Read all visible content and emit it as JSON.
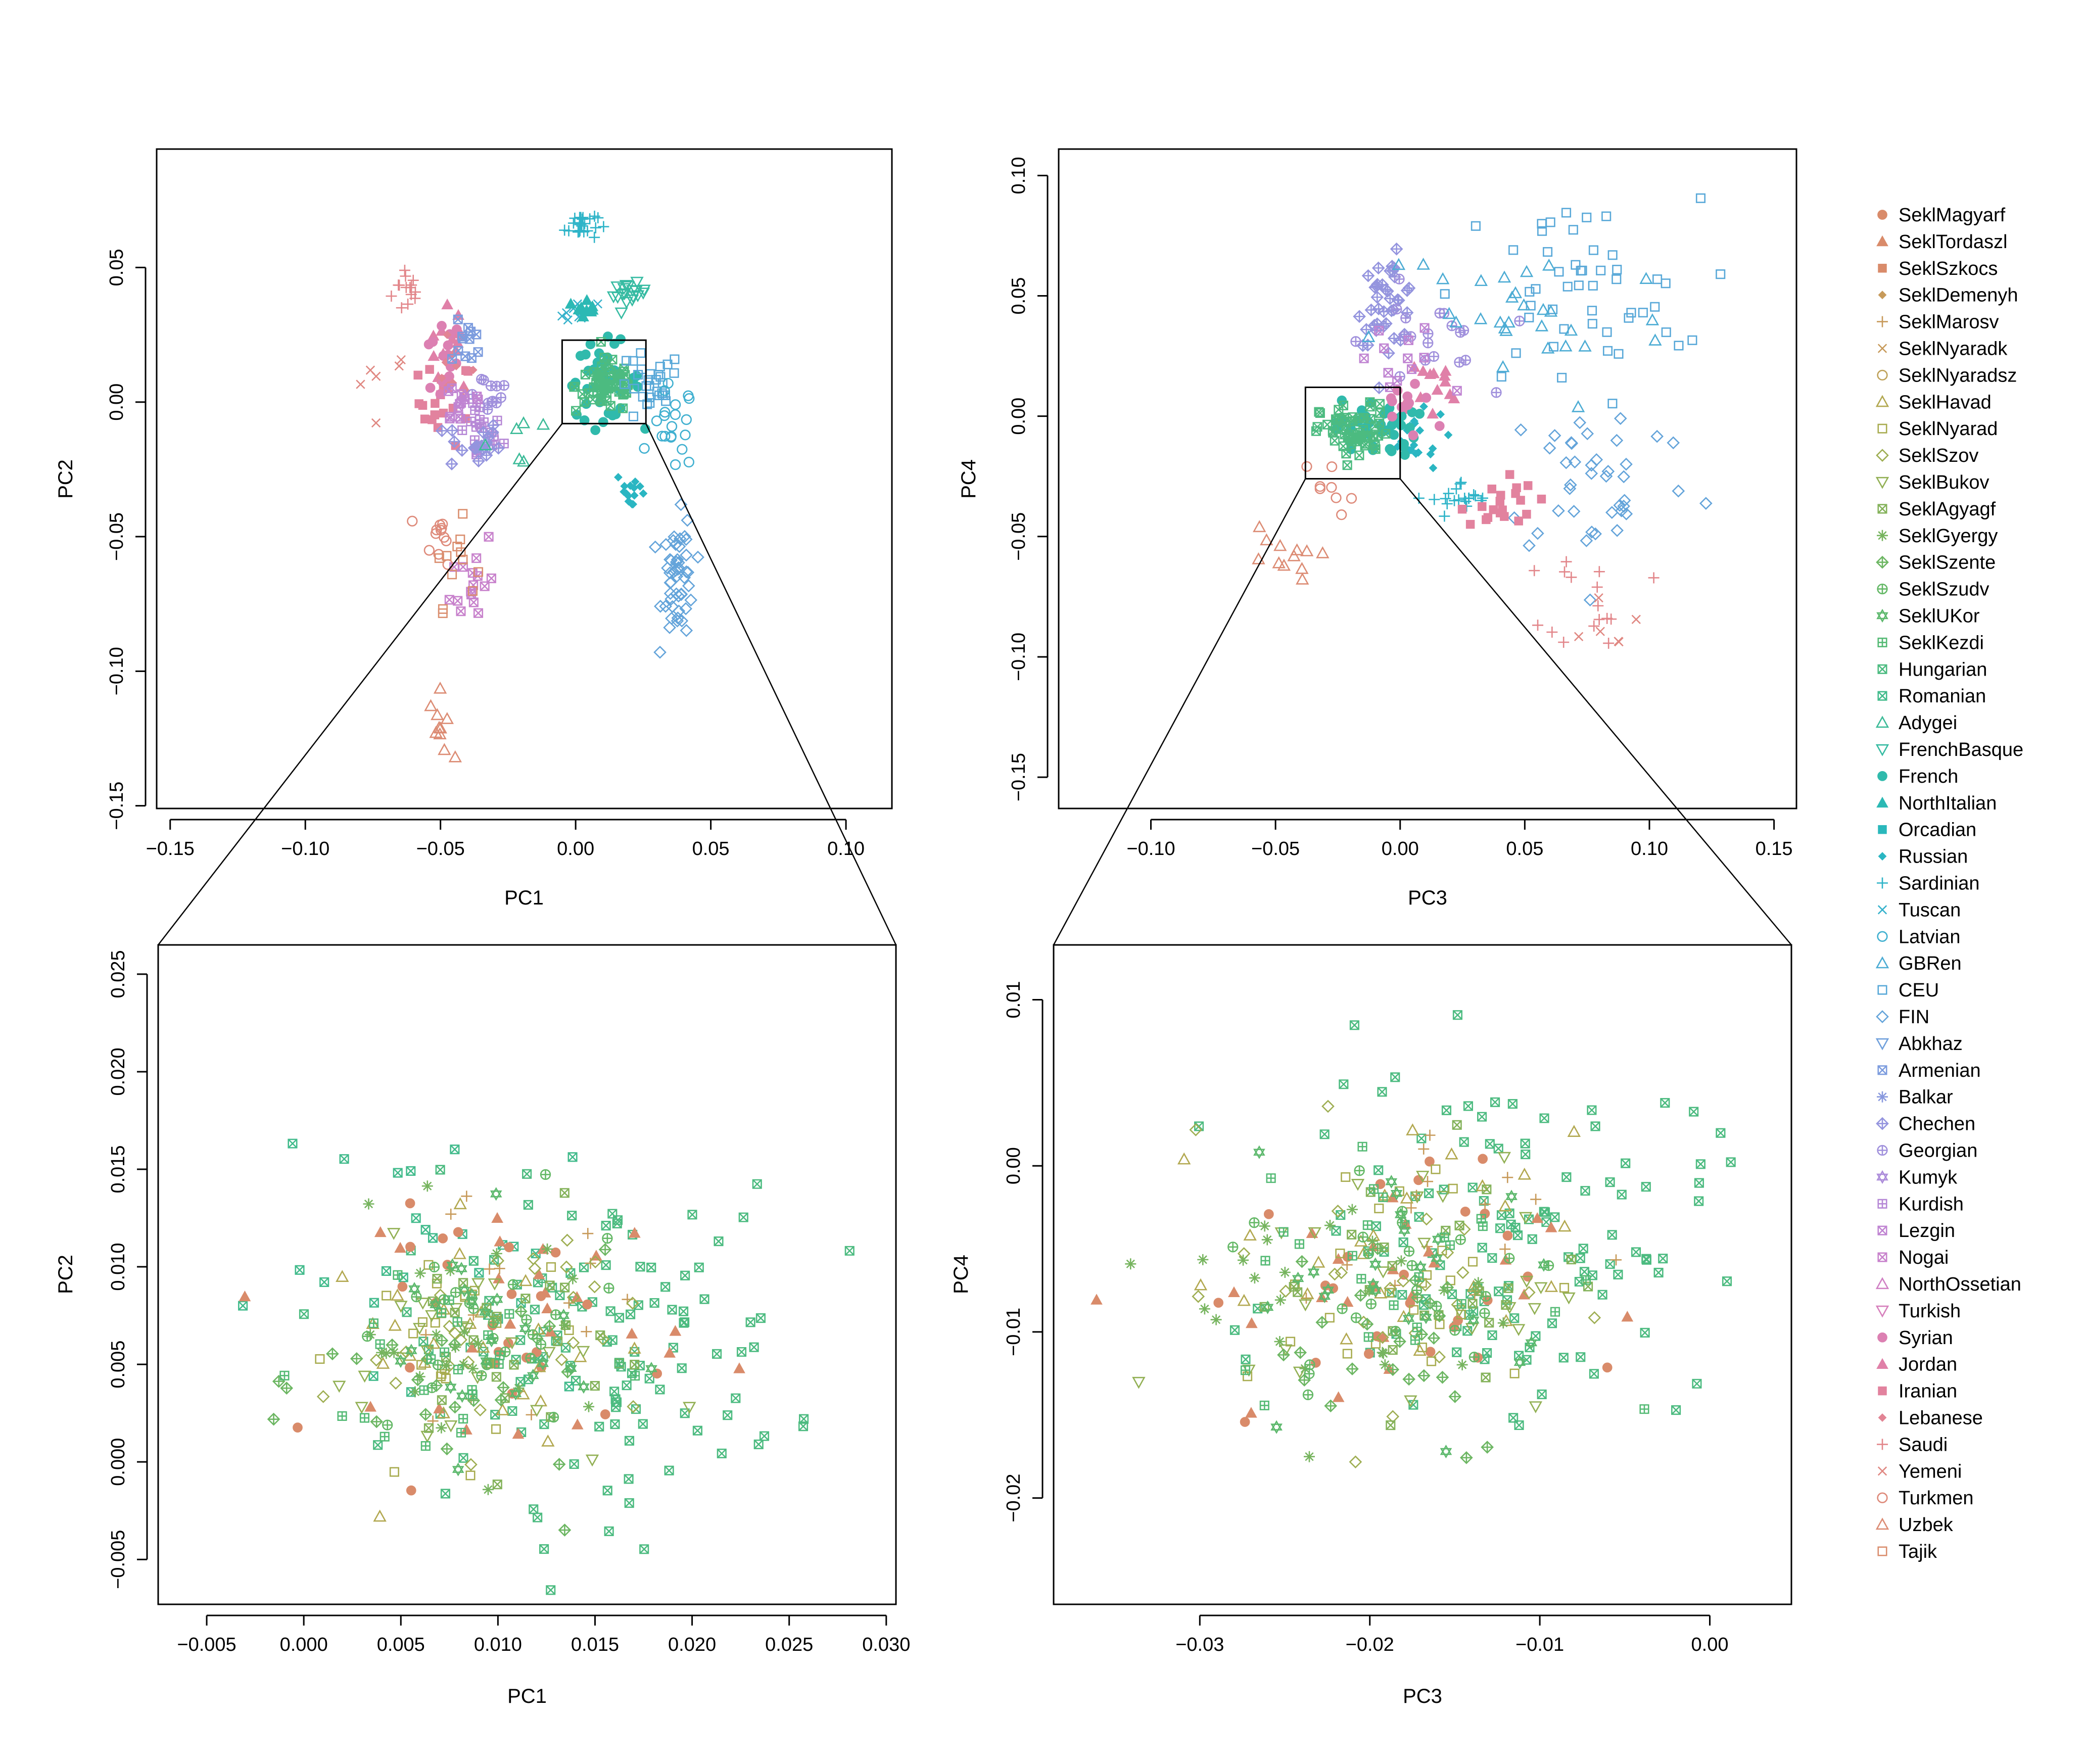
{
  "chart_data": [
    {
      "type": "scatter",
      "title": "",
      "xlabel": "PC1",
      "ylabel": "PC2",
      "xlim": [
        -0.155,
        0.117
      ],
      "ylim": [
        -0.151,
        0.094
      ],
      "xticks": [
        -0.15,
        -0.1,
        -0.05,
        0.0,
        0.05,
        0.1
      ],
      "xtick_labels": [
        "−0.15",
        "−0.10",
        "−0.05",
        "0.00",
        "0.05",
        "0.10"
      ],
      "yticks": [
        -0.15,
        -0.1,
        -0.05,
        0.0,
        0.05
      ],
      "ytick_labels": [
        "−0.15",
        "−0.10",
        "−0.05",
        "0.00",
        "0.05"
      ],
      "zoom_box": [
        -0.005,
        0.026,
        -0.008,
        0.023
      ],
      "clusters": [
        {
          "name": "Saudi",
          "cx": -0.062,
          "cy": 0.042,
          "sx": 0.003,
          "sy": 0.005,
          "n": 14
        },
        {
          "name": "Yemeni",
          "cx": -0.072,
          "cy": 0.008,
          "sx": 0.006,
          "sy": 0.006,
          "n": 6
        },
        {
          "name": "Jordan",
          "cx": -0.046,
          "cy": 0.02,
          "sx": 0.004,
          "sy": 0.008,
          "n": 14
        },
        {
          "name": "Iranian",
          "cx": -0.048,
          "cy": 0.0,
          "sx": 0.005,
          "sy": 0.008,
          "n": 20
        },
        {
          "name": "Syrian",
          "cx": -0.05,
          "cy": 0.015,
          "sx": 0.004,
          "sy": 0.008,
          "n": 14
        },
        {
          "name": "Lebanese",
          "cx": -0.045,
          "cy": 0.01,
          "sx": 0.004,
          "sy": 0.006,
          "n": 10
        },
        {
          "name": "Kurdish",
          "cx": -0.035,
          "cy": -0.012,
          "sx": 0.004,
          "sy": 0.006,
          "n": 20
        },
        {
          "name": "Armenian",
          "cx": -0.04,
          "cy": 0.022,
          "sx": 0.003,
          "sy": 0.004,
          "n": 12
        },
        {
          "name": "Chechen",
          "cx": -0.038,
          "cy": -0.016,
          "sx": 0.005,
          "sy": 0.005,
          "n": 20
        },
        {
          "name": "Georgian",
          "cx": -0.033,
          "cy": 0.004,
          "sx": 0.005,
          "sy": 0.004,
          "n": 12
        },
        {
          "name": "Lezgin",
          "cx": -0.042,
          "cy": 0.0,
          "sx": 0.005,
          "sy": 0.005,
          "n": 14
        },
        {
          "name": "Nogai",
          "cx": -0.038,
          "cy": -0.065,
          "sx": 0.004,
          "sy": 0.01,
          "n": 16
        },
        {
          "name": "Turkmen",
          "cx": -0.05,
          "cy": -0.05,
          "sx": 0.003,
          "sy": 0.005,
          "n": 12
        },
        {
          "name": "Tajik",
          "cx": -0.045,
          "cy": -0.06,
          "sx": 0.004,
          "sy": 0.008,
          "n": 12
        },
        {
          "name": "Uzbek",
          "cx": -0.05,
          "cy": -0.12,
          "sx": 0.002,
          "sy": 0.006,
          "n": 10
        },
        {
          "name": "Sardinian",
          "cx": 0.002,
          "cy": 0.066,
          "sx": 0.003,
          "sy": 0.003,
          "n": 25
        },
        {
          "name": "Tuscan",
          "cx": 0.0,
          "cy": 0.033,
          "sx": 0.004,
          "sy": 0.002,
          "n": 8
        },
        {
          "name": "NorthItalian",
          "cx": 0.004,
          "cy": 0.036,
          "sx": 0.002,
          "sy": 0.002,
          "n": 10
        },
        {
          "name": "FrenchBasque",
          "cx": 0.02,
          "cy": 0.04,
          "sx": 0.003,
          "sy": 0.002,
          "n": 18
        },
        {
          "name": "Russian",
          "cx": 0.021,
          "cy": -0.033,
          "sx": 0.003,
          "sy": 0.004,
          "n": 14
        },
        {
          "name": "French",
          "cx": 0.01,
          "cy": 0.008,
          "sx": 0.007,
          "sy": 0.007,
          "n": 40
        },
        {
          "name": "Hungarian",
          "cx": 0.012,
          "cy": 0.006,
          "sx": 0.006,
          "sy": 0.005,
          "n": 60
        },
        {
          "name": "CEU",
          "cx": 0.027,
          "cy": 0.005,
          "sx": 0.006,
          "sy": 0.007,
          "n": 30
        },
        {
          "name": "Latvian",
          "cx": 0.036,
          "cy": -0.01,
          "sx": 0.004,
          "sy": 0.008,
          "n": 20
        },
        {
          "name": "FIN",
          "cx": 0.038,
          "cy": -0.065,
          "sx": 0.003,
          "sy": 0.011,
          "n": 50
        },
        {
          "name": "Adygei",
          "cx": -0.02,
          "cy": -0.015,
          "sx": 0.006,
          "sy": 0.005,
          "n": 6
        }
      ]
    },
    {
      "type": "scatter",
      "title": "",
      "xlabel": "PC3",
      "ylabel": "PC4",
      "xlim": [
        -0.137,
        0.159
      ],
      "ylim": [
        -0.163,
        0.111
      ],
      "xticks": [
        -0.1,
        -0.05,
        0.0,
        0.05,
        0.1,
        0.15
      ],
      "xtick_labels": [
        "−0.10",
        "−0.05",
        "0.00",
        "0.05",
        "0.10",
        "0.15"
      ],
      "yticks": [
        -0.15,
        -0.1,
        -0.05,
        0.0,
        0.05,
        0.1
      ],
      "ytick_labels": [
        "−0.15",
        "−0.10",
        "−0.05",
        "0.00",
        "0.05",
        "0.10"
      ],
      "zoom_box": [
        -0.038,
        0.0,
        -0.026,
        0.012
      ],
      "clusters": [
        {
          "name": "Chechen",
          "cx": -0.005,
          "cy": 0.048,
          "sx": 0.006,
          "sy": 0.009,
          "n": 40
        },
        {
          "name": "Georgian",
          "cx": 0.01,
          "cy": 0.03,
          "sx": 0.012,
          "sy": 0.012,
          "n": 20
        },
        {
          "name": "CEU",
          "cx": 0.07,
          "cy": 0.05,
          "sx": 0.025,
          "sy": 0.02,
          "n": 50
        },
        {
          "name": "GBRen",
          "cx": 0.05,
          "cy": 0.04,
          "sx": 0.03,
          "sy": 0.02,
          "n": 30
        },
        {
          "name": "FIN",
          "cx": 0.08,
          "cy": -0.025,
          "sx": 0.02,
          "sy": 0.018,
          "n": 40
        },
        {
          "name": "Sardinian",
          "cx": 0.025,
          "cy": -0.035,
          "sx": 0.006,
          "sy": 0.004,
          "n": 20
        },
        {
          "name": "Iranian",
          "cx": 0.04,
          "cy": -0.035,
          "sx": 0.007,
          "sy": 0.006,
          "n": 20
        },
        {
          "name": "Saudi",
          "cx": 0.08,
          "cy": -0.075,
          "sx": 0.01,
          "sy": 0.01,
          "n": 16
        },
        {
          "name": "Yemeni",
          "cx": 0.08,
          "cy": -0.08,
          "sx": 0.008,
          "sy": 0.01,
          "n": 6
        },
        {
          "name": "Jordan",
          "cx": 0.01,
          "cy": 0.01,
          "sx": 0.008,
          "sy": 0.008,
          "n": 14
        },
        {
          "name": "Russian",
          "cx": 0.005,
          "cy": -0.01,
          "sx": 0.007,
          "sy": 0.006,
          "n": 20
        },
        {
          "name": "Uzbek",
          "cx": -0.05,
          "cy": -0.06,
          "sx": 0.008,
          "sy": 0.008,
          "n": 12
        },
        {
          "name": "Turkmen",
          "cx": -0.03,
          "cy": -0.03,
          "sx": 0.006,
          "sy": 0.006,
          "n": 8
        },
        {
          "name": "French",
          "cx": -0.01,
          "cy": -0.005,
          "sx": 0.008,
          "sy": 0.006,
          "n": 40
        },
        {
          "name": "Hungarian",
          "cx": -0.018,
          "cy": -0.007,
          "sx": 0.007,
          "sy": 0.006,
          "n": 60
        },
        {
          "name": "Lezgin",
          "cx": 0.0,
          "cy": 0.02,
          "sx": 0.01,
          "sy": 0.01,
          "n": 12
        },
        {
          "name": "Syrian",
          "cx": 0.005,
          "cy": 0.005,
          "sx": 0.01,
          "sy": 0.008,
          "n": 12
        }
      ]
    },
    {
      "type": "scatter",
      "title": "",
      "xlabel": "PC1",
      "ylabel": "PC2",
      "xlim": [
        -0.0075,
        0.0305
      ],
      "ylim": [
        -0.0073,
        0.0265
      ],
      "xticks": [
        -0.005,
        0.0,
        0.005,
        0.01,
        0.015,
        0.02,
        0.025,
        0.03
      ],
      "xtick_labels": [
        "−0.005",
        "0.000",
        "0.005",
        "0.010",
        "0.015",
        "0.020",
        "0.025",
        "0.030"
      ],
      "yticks": [
        -0.005,
        0.0,
        0.005,
        0.01,
        0.015,
        0.02,
        0.025
      ],
      "ytick_labels": [
        "−0.005",
        "0.000",
        "0.005",
        "0.010",
        "0.015",
        "0.020",
        "0.025"
      ],
      "clusters": [
        {
          "name": "Hungarian",
          "cx": 0.015,
          "cy": 0.006,
          "sx": 0.005,
          "sy": 0.004,
          "n": 120
        },
        {
          "name": "Romanian",
          "cx": 0.008,
          "cy": 0.01,
          "sx": 0.005,
          "sy": 0.004,
          "n": 25
        },
        {
          "name": "SeklMagyarf",
          "cx": 0.011,
          "cy": 0.007,
          "sx": 0.004,
          "sy": 0.003,
          "n": 25
        },
        {
          "name": "SeklTordaszl",
          "cx": 0.012,
          "cy": 0.008,
          "sx": 0.004,
          "sy": 0.003,
          "n": 25
        },
        {
          "name": "SeklMarosv",
          "cx": 0.01,
          "cy": 0.007,
          "sx": 0.004,
          "sy": 0.003,
          "n": 15
        },
        {
          "name": "SeklHavad",
          "cx": 0.009,
          "cy": 0.006,
          "sx": 0.004,
          "sy": 0.003,
          "n": 25
        },
        {
          "name": "SeklNyarad",
          "cx": 0.008,
          "cy": 0.006,
          "sx": 0.003,
          "sy": 0.003,
          "n": 25
        },
        {
          "name": "SeklSzov",
          "cx": 0.009,
          "cy": 0.007,
          "sx": 0.004,
          "sy": 0.003,
          "n": 25
        },
        {
          "name": "SeklBukov",
          "cx": 0.009,
          "cy": 0.005,
          "sx": 0.004,
          "sy": 0.003,
          "n": 25
        },
        {
          "name": "SeklAgyagf",
          "cx": 0.01,
          "cy": 0.006,
          "sx": 0.003,
          "sy": 0.003,
          "n": 25
        },
        {
          "name": "SeklGyergy",
          "cx": 0.008,
          "cy": 0.006,
          "sx": 0.004,
          "sy": 0.003,
          "n": 25
        },
        {
          "name": "SeklSzente",
          "cx": 0.009,
          "cy": 0.004,
          "sx": 0.004,
          "sy": 0.003,
          "n": 25
        },
        {
          "name": "SeklSzudv",
          "cx": 0.009,
          "cy": 0.006,
          "sx": 0.004,
          "sy": 0.003,
          "n": 25
        },
        {
          "name": "SeklUKor",
          "cx": 0.009,
          "cy": 0.006,
          "sx": 0.003,
          "sy": 0.003,
          "n": 25
        },
        {
          "name": "SeklKezdi",
          "cx": 0.008,
          "cy": 0.005,
          "sx": 0.004,
          "sy": 0.003,
          "n": 25
        }
      ]
    },
    {
      "type": "scatter",
      "title": "",
      "xlabel": "PC3",
      "ylabel": "PC4",
      "xlim": [
        -0.0386,
        0.0048
      ],
      "ylim": [
        -0.0264,
        0.0133
      ],
      "xticks": [
        -0.03,
        -0.02,
        -0.01,
        0.0
      ],
      "xtick_labels": [
        "−0.03",
        "−0.02",
        "−0.01",
        "0.00"
      ],
      "yticks": [
        -0.02,
        -0.01,
        0.0,
        0.01
      ],
      "ytick_labels": [
        "−0.02",
        "−0.01",
        "0.00",
        "0.01"
      ],
      "clusters": [
        {
          "name": "Hungarian",
          "cx": -0.012,
          "cy": -0.004,
          "sx": 0.006,
          "sy": 0.005,
          "n": 120
        },
        {
          "name": "SeklTordaszl",
          "cx": -0.022,
          "cy": -0.008,
          "sx": 0.006,
          "sy": 0.004,
          "n": 25
        },
        {
          "name": "SeklMagyarf",
          "cx": -0.02,
          "cy": -0.008,
          "sx": 0.005,
          "sy": 0.004,
          "n": 25
        },
        {
          "name": "SeklMarosv",
          "cx": -0.016,
          "cy": -0.004,
          "sx": 0.004,
          "sy": 0.004,
          "n": 15
        },
        {
          "name": "SeklHavad",
          "cx": -0.018,
          "cy": -0.006,
          "sx": 0.005,
          "sy": 0.004,
          "n": 25
        },
        {
          "name": "SeklNyarad",
          "cx": -0.019,
          "cy": -0.007,
          "sx": 0.005,
          "sy": 0.004,
          "n": 25
        },
        {
          "name": "SeklSzov",
          "cx": -0.018,
          "cy": -0.007,
          "sx": 0.005,
          "sy": 0.005,
          "n": 25
        },
        {
          "name": "SeklBukov",
          "cx": -0.017,
          "cy": -0.007,
          "sx": 0.005,
          "sy": 0.004,
          "n": 25
        },
        {
          "name": "SeklAgyagf",
          "cx": -0.017,
          "cy": -0.006,
          "sx": 0.005,
          "sy": 0.004,
          "n": 25
        },
        {
          "name": "SeklGyergy",
          "cx": -0.021,
          "cy": -0.008,
          "sx": 0.005,
          "sy": 0.004,
          "n": 25
        },
        {
          "name": "SeklSzente",
          "cx": -0.02,
          "cy": -0.01,
          "sx": 0.005,
          "sy": 0.004,
          "n": 25
        },
        {
          "name": "SeklSzudv",
          "cx": -0.018,
          "cy": -0.007,
          "sx": 0.005,
          "sy": 0.004,
          "n": 25
        },
        {
          "name": "SeklUKor",
          "cx": -0.017,
          "cy": -0.007,
          "sx": 0.005,
          "sy": 0.004,
          "n": 25
        },
        {
          "name": "SeklKezdi",
          "cx": -0.018,
          "cy": -0.006,
          "sx": 0.005,
          "sy": 0.004,
          "n": 25
        }
      ]
    }
  ],
  "legend": [
    {
      "name": "SeklMagyarf",
      "color": "#d98b6a",
      "symbol": "circle-filled"
    },
    {
      "name": "SeklTordaszl",
      "color": "#d98b6a",
      "symbol": "triangle-filled"
    },
    {
      "name": "SeklSzkocs",
      "color": "#d98b6a",
      "symbol": "square-filled"
    },
    {
      "name": "SeklDemenyh",
      "color": "#c79a5a",
      "symbol": "diamond-filled"
    },
    {
      "name": "SeklMarosv",
      "color": "#c79a5a",
      "symbol": "plus"
    },
    {
      "name": "SeklNyaradk",
      "color": "#c79a5a",
      "symbol": "cross"
    },
    {
      "name": "SeklNyaradsz",
      "color": "#bfa25a",
      "symbol": "circle"
    },
    {
      "name": "SeklHavad",
      "color": "#b2a850",
      "symbol": "triangle"
    },
    {
      "name": "SeklNyarad",
      "color": "#a8ac50",
      "symbol": "square"
    },
    {
      "name": "SeklSzov",
      "color": "#9eae52",
      "symbol": "diamond"
    },
    {
      "name": "SeklBukov",
      "color": "#92b054",
      "symbol": "triangle-down"
    },
    {
      "name": "SeklAgyagf",
      "color": "#84b25a",
      "symbol": "boxed-x"
    },
    {
      "name": "SeklGyergy",
      "color": "#76b45e",
      "symbol": "asterisk"
    },
    {
      "name": "SeklSzente",
      "color": "#6cb662",
      "symbol": "diamond-plus"
    },
    {
      "name": "SeklSzudv",
      "color": "#64b866",
      "symbol": "circle-plus"
    },
    {
      "name": "SeklUKor",
      "color": "#5cb86c",
      "symbol": "star-of-david"
    },
    {
      "name": "SeklKezdi",
      "color": "#54ba74",
      "symbol": "boxed-plus"
    },
    {
      "name": "Hungarian",
      "color": "#4cbb80",
      "symbol": "boxed-x"
    },
    {
      "name": "Romanian",
      "color": "#42bb8c",
      "symbol": "boxed-x"
    },
    {
      "name": "Adygei",
      "color": "#3cbb98",
      "symbol": "triangle"
    },
    {
      "name": "FrenchBasque",
      "color": "#36bba2",
      "symbol": "triangle-down"
    },
    {
      "name": "French",
      "color": "#30baac",
      "symbol": "circle-filled"
    },
    {
      "name": "NorthItalian",
      "color": "#2cb9b4",
      "symbol": "triangle-filled"
    },
    {
      "name": "Orcadian",
      "color": "#2ab8bc",
      "symbol": "square-filled"
    },
    {
      "name": "Russian",
      "color": "#2ab6c2",
      "symbol": "diamond-filled"
    },
    {
      "name": "Sardinian",
      "color": "#2eb4c8",
      "symbol": "plus"
    },
    {
      "name": "Tuscan",
      "color": "#36b2cc",
      "symbol": "cross"
    },
    {
      "name": "Latvian",
      "color": "#40b0d0",
      "symbol": "circle"
    },
    {
      "name": "GBRen",
      "color": "#4cacd4",
      "symbol": "triangle"
    },
    {
      "name": "CEU",
      "color": "#58a8d8",
      "symbol": "square"
    },
    {
      "name": "FIN",
      "color": "#64a4da",
      "symbol": "diamond"
    },
    {
      "name": "Abkhaz",
      "color": "#70a0dc",
      "symbol": "triangle-down"
    },
    {
      "name": "Armenian",
      "color": "#7c9cde",
      "symbol": "boxed-x"
    },
    {
      "name": "Balkar",
      "color": "#8898de",
      "symbol": "asterisk"
    },
    {
      "name": "Chechen",
      "color": "#9494de",
      "symbol": "diamond-plus"
    },
    {
      "name": "Georgian",
      "color": "#a090dc",
      "symbol": "circle-plus"
    },
    {
      "name": "Kumyk",
      "color": "#ac8cda",
      "symbol": "star-of-david"
    },
    {
      "name": "Kurdish",
      "color": "#b688d6",
      "symbol": "boxed-plus"
    },
    {
      "name": "Lezgin",
      "color": "#c084d2",
      "symbol": "boxed-x"
    },
    {
      "name": "Nogai",
      "color": "#c882cc",
      "symbol": "boxed-x"
    },
    {
      "name": "NorthOssetian",
      "color": "#d080c4",
      "symbol": "triangle"
    },
    {
      "name": "Turkish",
      "color": "#d680bc",
      "symbol": "triangle-down"
    },
    {
      "name": "Syrian",
      "color": "#dc80b2",
      "symbol": "circle-filled"
    },
    {
      "name": "Jordan",
      "color": "#e080a8",
      "symbol": "triangle-filled"
    },
    {
      "name": "Iranian",
      "color": "#e2829e",
      "symbol": "square-filled"
    },
    {
      "name": "Lebanese",
      "color": "#e28494",
      "symbol": "diamond-filled"
    },
    {
      "name": "Saudi",
      "color": "#e2868a",
      "symbol": "plus"
    },
    {
      "name": "Yemeni",
      "color": "#e08882",
      "symbol": "cross"
    },
    {
      "name": "Turkmen",
      "color": "#de8a7a",
      "symbol": "circle"
    },
    {
      "name": "Uzbek",
      "color": "#dc8c74",
      "symbol": "triangle"
    },
    {
      "name": "Tajik",
      "color": "#da8e6e",
      "symbol": "square"
    }
  ]
}
